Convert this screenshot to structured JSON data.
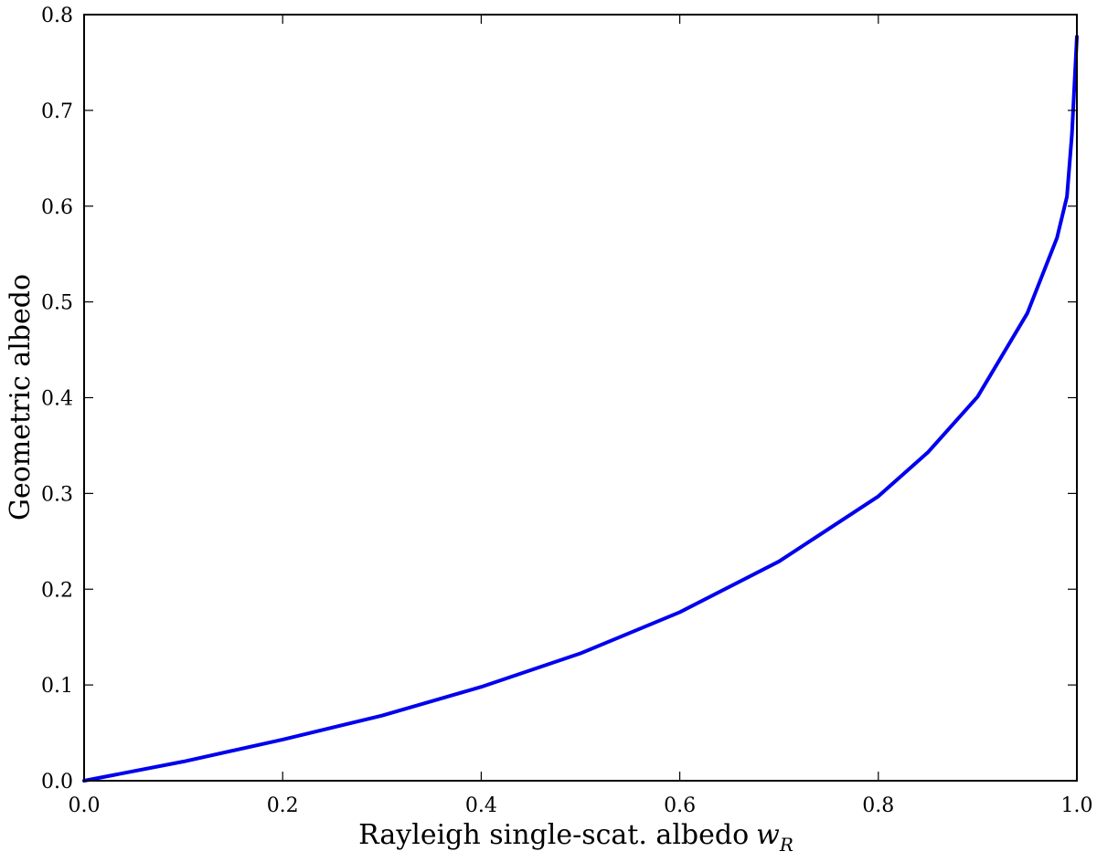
{
  "chart_data": {
    "type": "line",
    "title": "",
    "xlabel": "Rayleigh single-scat. albedo",
    "xlabel_symbol": "w",
    "xlabel_subscript": "R",
    "ylabel": "Geometric albedo",
    "xlim": [
      0.0,
      1.0
    ],
    "ylim": [
      0.0,
      0.8
    ],
    "xticks": [
      "0.0",
      "0.2",
      "0.4",
      "0.6",
      "0.8",
      "1.0"
    ],
    "yticks": [
      "0.0",
      "0.1",
      "0.2",
      "0.3",
      "0.4",
      "0.5",
      "0.6",
      "0.7",
      "0.8"
    ],
    "grid": false,
    "legend": "none",
    "series": [
      {
        "color": "#0000ee",
        "x": [
          0.0,
          0.1,
          0.2,
          0.3,
          0.4,
          0.5,
          0.6,
          0.7,
          0.8,
          0.85,
          0.9,
          0.95,
          0.98,
          0.99,
          0.995,
          1.0
        ],
        "y": [
          0.0,
          0.02,
          0.043,
          0.068,
          0.098,
          0.133,
          0.176,
          0.229,
          0.297,
          0.343,
          0.401,
          0.488,
          0.567,
          0.61,
          0.675,
          0.777
        ]
      }
    ]
  }
}
